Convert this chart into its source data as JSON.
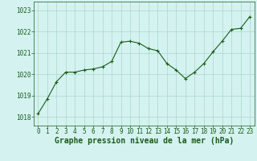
{
  "x": [
    0,
    1,
    2,
    3,
    4,
    5,
    6,
    7,
    8,
    9,
    10,
    11,
    12,
    13,
    14,
    15,
    16,
    17,
    18,
    19,
    20,
    21,
    22,
    23
  ],
  "y": [
    1018.15,
    1018.85,
    1019.65,
    1020.1,
    1020.1,
    1020.2,
    1020.25,
    1020.35,
    1020.6,
    1021.5,
    1021.55,
    1021.45,
    1021.2,
    1021.1,
    1020.5,
    1020.2,
    1019.8,
    1020.1,
    1020.5,
    1021.05,
    1021.55,
    1022.1,
    1022.15,
    1022.7
  ],
  "line_color": "#1a5c1a",
  "marker": "+",
  "background_color": "#d4f2f0",
  "grid_color": "#a8d8cc",
  "xlabel": "Graphe pression niveau de la mer (hPa)",
  "xlabel_color": "#1a5c1a",
  "ylabel_ticks": [
    1018,
    1019,
    1020,
    1021,
    1022,
    1023
  ],
  "xlim": [
    -0.5,
    23.5
  ],
  "ylim": [
    1017.6,
    1023.4
  ],
  "tick_color": "#1a5c1a",
  "tick_label_color": "#1a5c1a",
  "tick_fontsize": 5.5,
  "xlabel_fontsize": 7.0,
  "xlabel_fontweight": "bold"
}
